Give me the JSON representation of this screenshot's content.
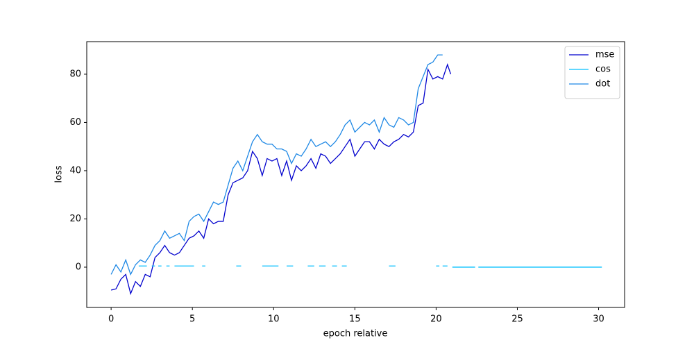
{
  "chart_data": {
    "type": "line",
    "xlabel": "epoch relative",
    "ylabel": "loss",
    "xlim": [
      -1.5,
      31.6
    ],
    "ylim": [
      -16.7,
      93.5
    ],
    "xticks": [
      0,
      5,
      10,
      15,
      20,
      25,
      30
    ],
    "yticks": [
      0,
      20,
      40,
      60,
      80
    ],
    "legend": "upper right",
    "series": [
      {
        "name": "mse",
        "color": "#0000cd",
        "x": [
          0,
          0.3,
          0.6,
          0.9,
          1.2,
          1.5,
          1.8,
          2.1,
          2.4,
          2.7,
          3.0,
          3.3,
          3.6,
          3.9,
          4.2,
          4.5,
          4.8,
          5.1,
          5.4,
          5.7,
          6.0,
          6.3,
          6.6,
          6.9,
          7.2,
          7.5,
          7.8,
          8.1,
          8.4,
          8.7,
          9.0,
          9.3,
          9.6,
          9.9,
          10.2,
          10.5,
          10.8,
          11.1,
          11.4,
          11.7,
          12.0,
          12.3,
          12.6,
          12.9,
          13.2,
          13.5,
          13.8,
          14.1,
          14.4,
          14.7,
          15.0,
          15.3,
          15.6,
          15.9,
          16.2,
          16.5,
          16.8,
          17.1,
          17.4,
          17.7,
          18.0,
          18.3,
          18.6,
          18.9,
          19.2,
          19.5,
          19.8,
          20.1,
          20.4,
          20.7,
          20.9
        ],
        "values": [
          -9.5,
          -9,
          -5,
          -3,
          -11,
          -6,
          -8,
          -3,
          -4,
          4,
          6,
          9,
          6,
          5,
          6,
          9,
          12,
          13,
          15,
          12,
          20,
          18,
          19,
          19,
          30,
          35,
          36,
          37,
          40,
          48,
          45,
          38,
          45,
          44,
          45,
          38,
          44,
          36,
          42,
          40,
          42,
          45,
          41,
          47,
          46,
          43,
          45,
          47,
          50,
          53,
          46,
          49,
          52,
          52,
          49,
          53,
          51,
          50,
          52,
          53,
          55,
          54,
          56,
          67,
          68,
          82,
          78,
          79,
          78,
          84,
          80
        ]
      },
      {
        "name": "cos",
        "color": "#00bfff",
        "x": [
          1.7,
          2.2,
          2.35,
          2.5,
          2.7,
          2.8,
          2.9,
          3.1,
          3.25,
          3.4,
          3.6,
          3.75,
          3.9,
          5.1,
          5.35,
          5.6,
          5.8,
          6.7,
          7.7,
          8.0,
          8.6,
          9.3,
          10.3,
          10.5,
          10.8,
          11.2,
          11.6,
          12.1,
          12.5,
          12.65,
          12.8,
          13.2,
          13.4,
          13.6,
          13.9,
          14.05,
          14.2,
          14.5,
          15.8,
          17.1,
          17.5,
          18.7,
          20.0,
          20.2,
          20.3,
          20.4,
          20.7,
          20.85,
          21.0,
          22.4,
          22.5,
          22.6,
          30.2
        ],
        "values": [
          0.5,
          0.5,
          null,
          0.5,
          0.5,
          null,
          0.5,
          0.5,
          null,
          0.5,
          0.5,
          null,
          0.5,
          0.5,
          null,
          0.5,
          0.5,
          null,
          0.5,
          0.5,
          null,
          0.5,
          0.5,
          null,
          0.5,
          0.5,
          null,
          0.5,
          0.5,
          null,
          0.5,
          0.5,
          null,
          0.5,
          0.5,
          null,
          0.5,
          0.5,
          null,
          0.5,
          0.5,
          null,
          0.5,
          0.5,
          null,
          0.5,
          0.5,
          null,
          0,
          0,
          null,
          0,
          0
        ]
      },
      {
        "name": "dot",
        "color": "#1e88e5",
        "x": [
          0,
          0.3,
          0.6,
          0.9,
          1.2,
          1.5,
          1.8,
          2.1,
          2.4,
          2.7,
          3.0,
          3.3,
          3.6,
          3.9,
          4.2,
          4.5,
          4.8,
          5.1,
          5.4,
          5.7,
          6.0,
          6.3,
          6.6,
          6.9,
          7.2,
          7.5,
          7.8,
          8.1,
          8.4,
          8.7,
          9.0,
          9.3,
          9.6,
          9.9,
          10.2,
          10.5,
          10.8,
          11.1,
          11.4,
          11.7,
          12.0,
          12.3,
          12.6,
          12.9,
          13.2,
          13.5,
          13.8,
          14.1,
          14.4,
          14.7,
          15.0,
          15.3,
          15.6,
          15.9,
          16.2,
          16.5,
          16.8,
          17.1,
          17.4,
          17.7,
          18.0,
          18.3,
          18.6,
          18.9,
          19.2,
          19.5,
          19.8,
          20.1,
          20.4
        ],
        "values": [
          -3,
          1,
          -2,
          3,
          -3,
          1,
          3,
          2,
          5,
          9,
          11,
          15,
          12,
          13,
          14,
          11,
          19,
          21,
          22,
          19,
          23,
          27,
          26,
          27,
          34,
          41,
          44,
          40,
          46,
          52,
          55,
          52,
          51,
          51,
          49,
          49,
          48,
          43,
          47,
          46,
          49,
          53,
          50,
          51,
          52,
          50,
          52,
          55,
          59,
          61,
          56,
          58,
          60,
          59,
          61,
          56,
          62,
          59,
          58,
          62,
          61,
          59,
          60,
          74,
          79,
          84,
          85,
          88,
          88
        ]
      }
    ]
  }
}
